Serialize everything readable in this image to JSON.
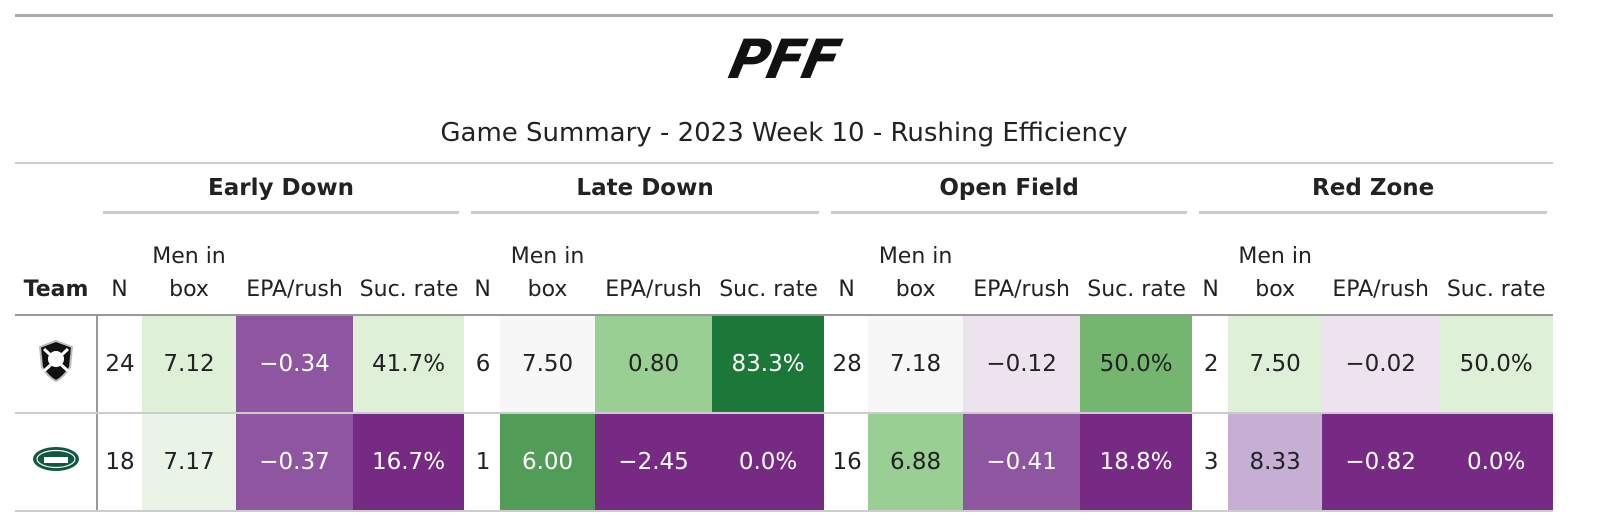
{
  "logo": "PFF",
  "title": "Game Summary - 2023 Week 10 - Rushing Efficiency",
  "table": {
    "groups": [
      "Early Down",
      "Late Down",
      "Open Field",
      "Red Zone"
    ],
    "team_header": "Team",
    "columns": [
      "N",
      "Men in box",
      "EPA/rush",
      "Suc. rate",
      "N",
      "Men in box",
      "EPA/rush",
      "Suc. rate",
      "N",
      "Men in box",
      "EPA/rush",
      "Suc. rate",
      "N",
      "Men in box",
      "EPA/rush",
      "Suc. rate"
    ],
    "rows": [
      [
        "24",
        "7.12",
        "−0.34",
        "41.7%",
        "6",
        "7.50",
        "0.80",
        "83.3%",
        "28",
        "7.18",
        "−0.12",
        "50.0%",
        "2",
        "7.50",
        "−0.02",
        "50.0%"
      ],
      [
        "18",
        "7.17",
        "−0.37",
        "16.7%",
        "1",
        "6.00",
        "−2.45",
        "0.0%",
        "16",
        "6.88",
        "−0.41",
        "18.8%",
        "3",
        "8.33",
        "−0.82",
        "0.0%"
      ]
    ]
  }
}
